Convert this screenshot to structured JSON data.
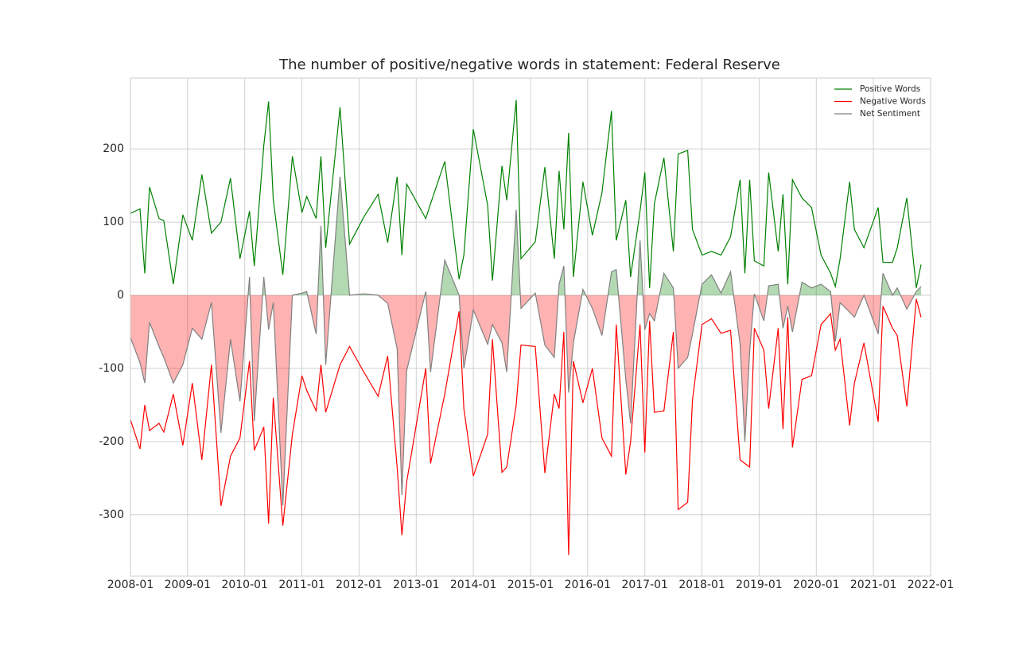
{
  "chart_data": {
    "type": "line",
    "title": "The number of positive/negative words in statement: Federal Reserve",
    "x": [
      "2008-01",
      "2008-03",
      "2008-04",
      "2008-05",
      "2008-07",
      "2008-08",
      "2008-10",
      "2008-12",
      "2009-02",
      "2009-04",
      "2009-06",
      "2009-08",
      "2009-10",
      "2009-12",
      "2010-02",
      "2010-03",
      "2010-05",
      "2010-06",
      "2010-07",
      "2010-09",
      "2010-11",
      "2011-01",
      "2011-02",
      "2011-04",
      "2011-05",
      "2011-06",
      "2011-09",
      "2011-11",
      "2012-02",
      "2012-05",
      "2012-07",
      "2012-09",
      "2012-10",
      "2012-11",
      "2013-03",
      "2013-04",
      "2013-07",
      "2013-10",
      "2013-11",
      "2014-01",
      "2014-04",
      "2014-05",
      "2014-07",
      "2014-08",
      "2014-10",
      "2014-11",
      "2015-02",
      "2015-04",
      "2015-06",
      "2015-07",
      "2015-08",
      "2015-09",
      "2015-10",
      "2015-12",
      "2016-02",
      "2016-04",
      "2016-06",
      "2016-07",
      "2016-09",
      "2016-10",
      "2016-12",
      "2017-01",
      "2017-02",
      "2017-03",
      "2017-05",
      "2017-07",
      "2017-08",
      "2017-10",
      "2017-11",
      "2018-01",
      "2018-03",
      "2018-05",
      "2018-07",
      "2018-09",
      "2018-10",
      "2018-11",
      "2018-12",
      "2019-02",
      "2019-03",
      "2019-05",
      "2019-06",
      "2019-07",
      "2019-08",
      "2019-10",
      "2019-12",
      "2020-02",
      "2020-04",
      "2020-05",
      "2020-06",
      "2020-08",
      "2020-09",
      "2020-11",
      "2021-02",
      "2021-03",
      "2021-05",
      "2021-06",
      "2021-08",
      "2021-10",
      "2021-11"
    ],
    "series": [
      {
        "name": "Positive Words",
        "color": "green",
        "values": [
          112,
          118,
          30,
          148,
          105,
          102,
          15,
          110,
          75,
          165,
          85,
          100,
          160,
          50,
          115,
          40,
          205,
          265,
          130,
          28,
          190,
          113,
          135,
          105,
          190,
          65,
          257,
          70,
          107,
          138,
          72,
          162,
          55,
          152,
          105,
          125,
          183,
          22,
          55,
          227,
          123,
          20,
          177,
          130,
          267,
          50,
          73,
          175,
          50,
          170,
          90,
          222,
          25,
          155,
          82,
          140,
          252,
          75,
          130,
          25,
          115,
          168,
          10,
          125,
          188,
          60,
          193,
          198,
          90,
          55,
          60,
          55,
          80,
          158,
          30,
          158,
          47,
          40,
          168,
          60,
          138,
          15,
          158,
          133,
          120,
          55,
          30,
          12,
          50,
          155,
          90,
          65,
          120,
          45,
          45,
          65,
          133,
          10,
          42
        ]
      },
      {
        "name": "Negative Words",
        "color": "red",
        "values": [
          -170,
          -210,
          -150,
          -185,
          -175,
          -187,
          -135,
          -205,
          -120,
          -225,
          -95,
          -288,
          -220,
          -195,
          -90,
          -212,
          -180,
          -312,
          -140,
          -315,
          -190,
          -110,
          -130,
          -158,
          -95,
          -160,
          -95,
          -70,
          -105,
          -138,
          -83,
          -235,
          -328,
          -255,
          -100,
          -230,
          -135,
          -22,
          -155,
          -247,
          -190,
          -60,
          -242,
          -235,
          -150,
          -68,
          -70,
          -243,
          -135,
          -155,
          -50,
          -355,
          -90,
          -147,
          -100,
          -195,
          -220,
          -40,
          -245,
          -200,
          -40,
          -215,
          -35,
          -160,
          -158,
          -50,
          -293,
          -283,
          -143,
          -40,
          -32,
          -52,
          -48,
          -225,
          -230,
          -235,
          -45,
          -75,
          -155,
          -45,
          -183,
          -30,
          -208,
          -115,
          -110,
          -40,
          -25,
          -75,
          -60,
          -178,
          -120,
          -65,
          -173,
          -15,
          -45,
          -55,
          -152,
          -5,
          -30
        ]
      },
      {
        "name": "Net Sentiment",
        "color": "gray",
        "fill": {
          "positive": "green",
          "negative": "red"
        },
        "values": [
          -58,
          -92,
          -120,
          -37,
          -70,
          -85,
          -120,
          -95,
          -45,
          -60,
          -10,
          -188,
          -60,
          -145,
          25,
          -172,
          25,
          -47,
          -10,
          -287,
          0,
          3,
          5,
          -53,
          95,
          -95,
          162,
          0,
          2,
          0,
          -11,
          -73,
          -273,
          -103,
          5,
          -105,
          48,
          0,
          -100,
          -20,
          -67,
          -40,
          -65,
          -105,
          117,
          -18,
          3,
          -68,
          -85,
          15,
          40,
          -133,
          -65,
          8,
          -18,
          -55,
          32,
          35,
          -115,
          -175,
          75,
          -47,
          -25,
          -35,
          30,
          10,
          -100,
          -85,
          -53,
          15,
          28,
          3,
          32,
          -67,
          -200,
          -77,
          2,
          -35,
          13,
          15,
          -45,
          -15,
          -50,
          18,
          10,
          15,
          5,
          -63,
          -10,
          -23,
          -30,
          0,
          -53,
          30,
          0,
          10,
          -19,
          5,
          12
        ]
      }
    ],
    "xlim": [
      "2008-01",
      "2022-01"
    ],
    "xticks": [
      "2008-01",
      "2009-01",
      "2010-01",
      "2011-01",
      "2012-01",
      "2013-01",
      "2014-01",
      "2015-01",
      "2016-01",
      "2017-01",
      "2018-01",
      "2019-01",
      "2020-01",
      "2021-01",
      "2022-01"
    ],
    "ylim": [
      -384,
      297
    ],
    "yticks": [
      -300,
      -200,
      -100,
      0,
      100,
      200
    ],
    "grid": true,
    "legend": "upper right"
  }
}
